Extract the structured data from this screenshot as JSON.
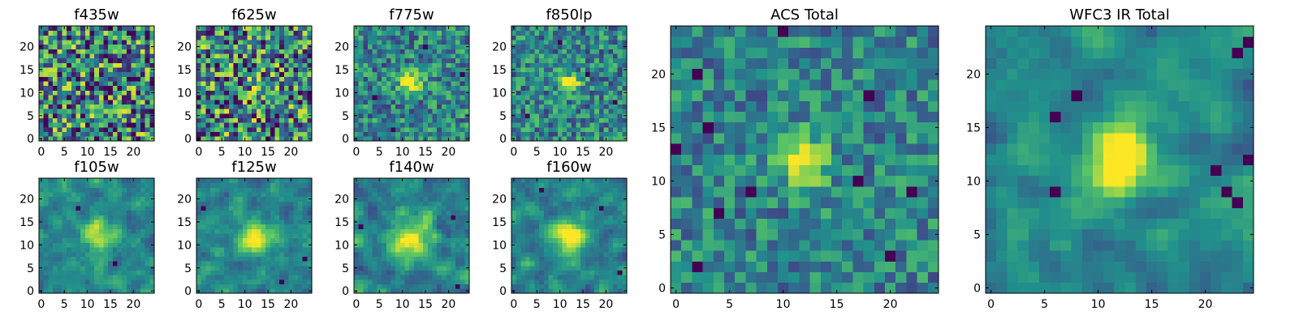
{
  "figure": {
    "colormap": "viridis",
    "colors": {
      "viridis_stops": [
        "#440154",
        "#3b528b",
        "#21918c",
        "#5ec962",
        "#fde725"
      ],
      "axes_frame": "#000000",
      "background": "#ffffff"
    }
  },
  "chart_data": [
    {
      "type": "heatmap",
      "title": "f435w",
      "grid_size": 25,
      "xticks": [
        "0",
        "5",
        "10",
        "15",
        "20"
      ],
      "yticks": [
        "0",
        "5",
        "10",
        "15",
        "20"
      ],
      "xlim": [
        -0.5,
        24.5
      ],
      "ylim": [
        -0.5,
        24.5
      ],
      "source_peak": [
        12,
        12
      ],
      "source_strength": 0.05,
      "source_width": 1.8,
      "noise_level": 1.0,
      "smoothness": 0,
      "dark_spots": [
        [
          8,
          13
        ],
        [
          6,
          7
        ],
        [
          3,
          11
        ],
        [
          14,
          18
        ],
        [
          19,
          3
        ]
      ]
    },
    {
      "type": "heatmap",
      "title": "f625w",
      "grid_size": 25,
      "xticks": [
        "0",
        "5",
        "10",
        "15",
        "20"
      ],
      "yticks": [
        "0",
        "5",
        "10",
        "15",
        "20"
      ],
      "xlim": [
        -0.5,
        24.5
      ],
      "ylim": [
        -0.5,
        24.5
      ],
      "source_peak": [
        12,
        12
      ],
      "source_strength": 0.1,
      "source_width": 1.8,
      "noise_level": 1.0,
      "smoothness": 0,
      "dark_spots": [
        [
          9,
          12
        ],
        [
          13,
          4
        ],
        [
          18,
          18
        ],
        [
          6,
          8
        ],
        [
          20,
          9
        ]
      ]
    },
    {
      "type": "heatmap",
      "title": "f775w",
      "grid_size": 25,
      "xticks": [
        "0",
        "5",
        "10",
        "15",
        "20"
      ],
      "yticks": [
        "0",
        "5",
        "10",
        "15",
        "20"
      ],
      "xlim": [
        -0.5,
        24.5
      ],
      "ylim": [
        -0.5,
        24.5
      ],
      "source_peak": [
        12,
        12
      ],
      "source_strength": 0.85,
      "source_width": 1.6,
      "noise_level": 0.55,
      "smoothness": 0,
      "dark_spots": [
        [
          15,
          20
        ],
        [
          4,
          9
        ],
        [
          23,
          14
        ],
        [
          8,
          2
        ]
      ]
    },
    {
      "type": "heatmap",
      "title": "f850lp",
      "grid_size": 25,
      "xticks": [
        "0",
        "5",
        "10",
        "15",
        "20"
      ],
      "yticks": [
        "0",
        "5",
        "10",
        "15",
        "20"
      ],
      "xlim": [
        -0.5,
        24.5
      ],
      "ylim": [
        -0.5,
        24.5
      ],
      "source_peak": [
        12,
        12
      ],
      "source_strength": 0.9,
      "source_width": 1.5,
      "noise_level": 0.55,
      "smoothness": 0,
      "dark_spots": [
        [
          10,
          21
        ],
        [
          22,
          8
        ],
        [
          3,
          5
        ],
        [
          16,
          14
        ]
      ]
    },
    {
      "type": "heatmap",
      "title": "f105w",
      "grid_size": 25,
      "xticks": [
        "0",
        "5",
        "10",
        "15",
        "20"
      ],
      "yticks": [
        "0",
        "5",
        "10",
        "15",
        "20"
      ],
      "xlim": [
        -0.5,
        24.5
      ],
      "ylim": [
        -0.5,
        24.5
      ],
      "source_peak": [
        12,
        12
      ],
      "source_strength": 0.7,
      "source_width": 2.6,
      "noise_level": 0.5,
      "smoothness": 1,
      "dark_spots": [
        [
          8,
          18
        ],
        [
          16,
          6
        ]
      ]
    },
    {
      "type": "heatmap",
      "title": "f125w",
      "grid_size": 25,
      "xticks": [
        "0",
        "5",
        "10",
        "15",
        "20"
      ],
      "yticks": [
        "0",
        "5",
        "10",
        "15",
        "20"
      ],
      "xlim": [
        -0.5,
        24.5
      ],
      "ylim": [
        -0.5,
        24.5
      ],
      "source_peak": [
        12,
        12
      ],
      "source_strength": 0.8,
      "source_width": 2.4,
      "noise_level": 0.5,
      "smoothness": 1,
      "dark_spots": [
        [
          23,
          7
        ],
        [
          1,
          18
        ],
        [
          18,
          2
        ]
      ]
    },
    {
      "type": "heatmap",
      "title": "f140w",
      "grid_size": 25,
      "xticks": [
        "0",
        "5",
        "10",
        "15",
        "20"
      ],
      "yticks": [
        "0",
        "5",
        "10",
        "15",
        "20"
      ],
      "xlim": [
        -0.5,
        24.5
      ],
      "ylim": [
        -0.5,
        24.5
      ],
      "source_peak": [
        12,
        11
      ],
      "source_strength": 0.75,
      "source_width": 2.8,
      "noise_level": 0.55,
      "smoothness": 1,
      "dark_spots": [
        [
          21,
          16
        ],
        [
          1,
          14
        ],
        [
          22,
          1
        ]
      ]
    },
    {
      "type": "heatmap",
      "title": "f160w",
      "grid_size": 25,
      "xticks": [
        "0",
        "5",
        "10",
        "15",
        "20"
      ],
      "yticks": [
        "0",
        "5",
        "10",
        "15",
        "20"
      ],
      "xlim": [
        -0.5,
        24.5
      ],
      "ylim": [
        -0.5,
        24.5
      ],
      "source_peak": [
        12,
        12
      ],
      "source_strength": 0.85,
      "source_width": 2.5,
      "noise_level": 0.5,
      "smoothness": 1,
      "dark_spots": [
        [
          6,
          22
        ],
        [
          19,
          18
        ],
        [
          23,
          4
        ]
      ]
    },
    {
      "type": "heatmap",
      "title": "ACS Total",
      "grid_size": 25,
      "xticks": [
        "0",
        "5",
        "10",
        "15",
        "20"
      ],
      "yticks": [
        "0",
        "5",
        "10",
        "15",
        "20"
      ],
      "xlim": [
        -0.5,
        24.5
      ],
      "ylim": [
        -0.5,
        24.5
      ],
      "source_peak": [
        12,
        12
      ],
      "source_strength": 0.95,
      "source_width": 1.5,
      "noise_level": 0.45,
      "smoothness": 0,
      "dark_spots": [
        [
          10,
          24
        ],
        [
          2,
          20
        ],
        [
          18,
          18
        ],
        [
          3,
          15
        ],
        [
          0,
          13
        ],
        [
          7,
          9
        ],
        [
          17,
          10
        ],
        [
          22,
          9
        ],
        [
          4,
          7
        ],
        [
          2,
          2
        ],
        [
          20,
          3
        ]
      ]
    },
    {
      "type": "heatmap",
      "title": "WFC3 IR Total",
      "grid_size": 25,
      "xticks": [
        "0",
        "5",
        "10",
        "15",
        "20"
      ],
      "yticks": [
        "0",
        "5",
        "10",
        "15",
        "20"
      ],
      "xlim": [
        -0.5,
        24.5
      ],
      "ylim": [
        -0.5,
        24.5
      ],
      "source_peak": [
        12,
        12
      ],
      "source_strength": 0.95,
      "source_width": 2.4,
      "noise_level": 0.4,
      "smoothness": 1,
      "dark_spots": [
        [
          8,
          18
        ],
        [
          6,
          16
        ],
        [
          21,
          11
        ],
        [
          22,
          9
        ],
        [
          23,
          8
        ],
        [
          6,
          9
        ],
        [
          23,
          22
        ],
        [
          24,
          23
        ],
        [
          24,
          12
        ]
      ]
    }
  ]
}
